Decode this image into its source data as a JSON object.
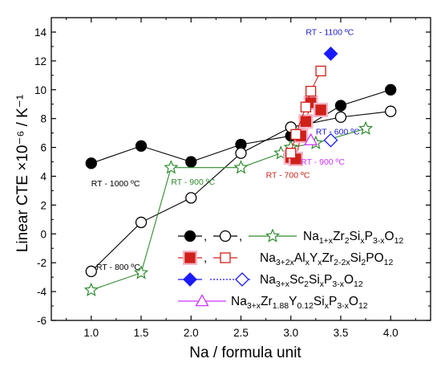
{
  "chart_data": {
    "type": "scatter",
    "xlabel": "Na / formula unit",
    "ylabel": "Linear CTE ×10⁻⁶ / K⁻¹",
    "xlim": [
      0.6,
      4.4
    ],
    "ylim": [
      -6,
      15
    ],
    "xticks": [
      "1.0",
      "1.5",
      "2.0",
      "2.5",
      "3.0",
      "3.5",
      "4.0"
    ],
    "yticks": [
      "-6",
      "-4",
      "-2",
      "0",
      "2",
      "4",
      "6",
      "8",
      "10",
      "12",
      "14"
    ],
    "grid": false,
    "legend_position": "bottom-right",
    "colors": {
      "black": "#000000",
      "green": "#2e8b2e",
      "red": "#d0201a",
      "red_glow": "#f4b6c8",
      "blue": "#1a1aff",
      "purple": "#cc33ff",
      "annotation_blue": "#1a1ad0",
      "annotation_red": "#d0201a",
      "annotation_purple": "#cc33ff",
      "annotation_green": "#2e8b2e",
      "annotation_black": "#000000"
    },
    "series": [
      {
        "marker": "circle-filled",
        "color": "#000000",
        "line": "solid",
        "points": [
          [
            1.0,
            4.9
          ],
          [
            1.5,
            6.1
          ],
          [
            2.0,
            5.0
          ],
          [
            2.5,
            6.2
          ],
          [
            3.0,
            6.8
          ],
          [
            3.5,
            8.9
          ],
          [
            4.0,
            10.0
          ]
        ]
      },
      {
        "marker": "circle-open",
        "color": "#000000",
        "line": "solid",
        "points": [
          [
            1.0,
            -2.6
          ],
          [
            1.5,
            0.8
          ],
          [
            2.0,
            2.5
          ],
          [
            2.5,
            5.6
          ],
          [
            3.0,
            7.4
          ],
          [
            3.5,
            8.1
          ],
          [
            4.0,
            8.5
          ]
        ]
      },
      {
        "marker": "star-open",
        "color": "#2e8b2e",
        "line": "solid",
        "points": [
          [
            1.0,
            -3.9
          ],
          [
            1.5,
            -2.7
          ],
          [
            1.8,
            4.6
          ],
          [
            2.5,
            4.6
          ],
          [
            2.9,
            5.6
          ],
          [
            3.0,
            6.0
          ],
          [
            3.25,
            6.3
          ],
          [
            3.75,
            7.3
          ]
        ]
      },
      {
        "marker": "square-filled",
        "color": "#d0201a",
        "line": "solid",
        "points": [
          [
            3.0,
            5.3
          ],
          [
            3.05,
            5.2
          ],
          [
            3.1,
            6.8
          ],
          [
            3.15,
            7.8
          ],
          [
            3.2,
            9.1
          ],
          [
            3.3,
            8.6
          ]
        ]
      },
      {
        "marker": "square-open",
        "color": "#d0201a",
        "line": "solid",
        "points": [
          [
            3.0,
            5.6
          ],
          [
            3.05,
            6.9
          ],
          [
            3.15,
            8.8
          ],
          [
            3.2,
            9.9
          ],
          [
            3.3,
            11.3
          ]
        ]
      },
      {
        "marker": "diamond-filled",
        "color": "#1a1aff",
        "line": "none",
        "points": [
          [
            3.4,
            12.5
          ]
        ]
      },
      {
        "marker": "diamond-open",
        "color": "#1a1aff",
        "line": "none",
        "points": [
          [
            3.4,
            6.5
          ]
        ]
      },
      {
        "marker": "triangle-open",
        "color": "#cc33ff",
        "line": "none",
        "points": [
          [
            3.2,
            6.5
          ]
        ]
      }
    ],
    "annotations": [
      {
        "text": "RT - 1000 ºC",
        "x": 1.0,
        "y": 3.3,
        "color": "#000000"
      },
      {
        "text": "RT - 800 ºC",
        "x": 1.05,
        "y": -2.5,
        "color": "#000000"
      },
      {
        "text": "RT - 900 ºC",
        "x": 1.8,
        "y": 3.4,
        "color": "#2e8b2e"
      },
      {
        "text": "RT - 700 ºC",
        "x": 2.75,
        "y": 3.9,
        "color": "#d0201a"
      },
      {
        "text": "RT - 900 ºC",
        "x": 3.1,
        "y": 4.8,
        "color": "#cc33ff"
      },
      {
        "text": "RT - 600 ºC",
        "x": 3.25,
        "y": 6.9,
        "color": "#1a1ad0"
      },
      {
        "text": "RT - 1100 ºC",
        "x": 3.15,
        "y": 13.8,
        "color": "#1a1ad0"
      }
    ],
    "legend": [
      {
        "prefix": "—●—, —○— , ",
        "label_parts": [
          [
            "Na",
            ""
          ],
          [
            "1+x",
            "sub"
          ],
          [
            "Zr",
            ""
          ],
          [
            "2",
            "sub"
          ],
          [
            "Si",
            ""
          ],
          [
            "x",
            "sub"
          ],
          [
            "P",
            ""
          ],
          [
            "3-x",
            "sub"
          ],
          [
            "O",
            ""
          ],
          [
            "12",
            "sub"
          ]
        ]
      },
      {
        "prefix": "",
        "label_parts": [
          [
            "Na",
            ""
          ],
          [
            "3+2x",
            "sub"
          ],
          [
            "Al",
            ""
          ],
          [
            "x",
            "sub"
          ],
          [
            "Y",
            ""
          ],
          [
            "x",
            "sub"
          ],
          [
            "Zr",
            ""
          ],
          [
            "2-2x",
            "sub"
          ],
          [
            "Si",
            ""
          ],
          [
            "2",
            "sub"
          ],
          [
            "PO",
            ""
          ],
          [
            "12",
            "sub"
          ]
        ]
      },
      {
        "prefix": "",
        "label_parts": [
          [
            "Na",
            ""
          ],
          [
            "3+x",
            "sub"
          ],
          [
            "Sc",
            ""
          ],
          [
            "2",
            "sub"
          ],
          [
            "Si",
            ""
          ],
          [
            "x",
            "sub"
          ],
          [
            "P",
            ""
          ],
          [
            "3-x",
            "sub"
          ],
          [
            "O",
            ""
          ],
          [
            "12",
            "sub"
          ]
        ]
      },
      {
        "prefix": "",
        "label_parts": [
          [
            "Na",
            ""
          ],
          [
            "3+x",
            "sub"
          ],
          [
            "Zr",
            ""
          ],
          [
            "1.88",
            "sub"
          ],
          [
            "Y",
            ""
          ],
          [
            "0.12",
            "sub"
          ],
          [
            "Si",
            ""
          ],
          [
            "x",
            "sub"
          ],
          [
            "P",
            ""
          ],
          [
            "3-x",
            "sub"
          ],
          [
            "O",
            ""
          ],
          [
            "12",
            "sub"
          ]
        ]
      }
    ]
  }
}
